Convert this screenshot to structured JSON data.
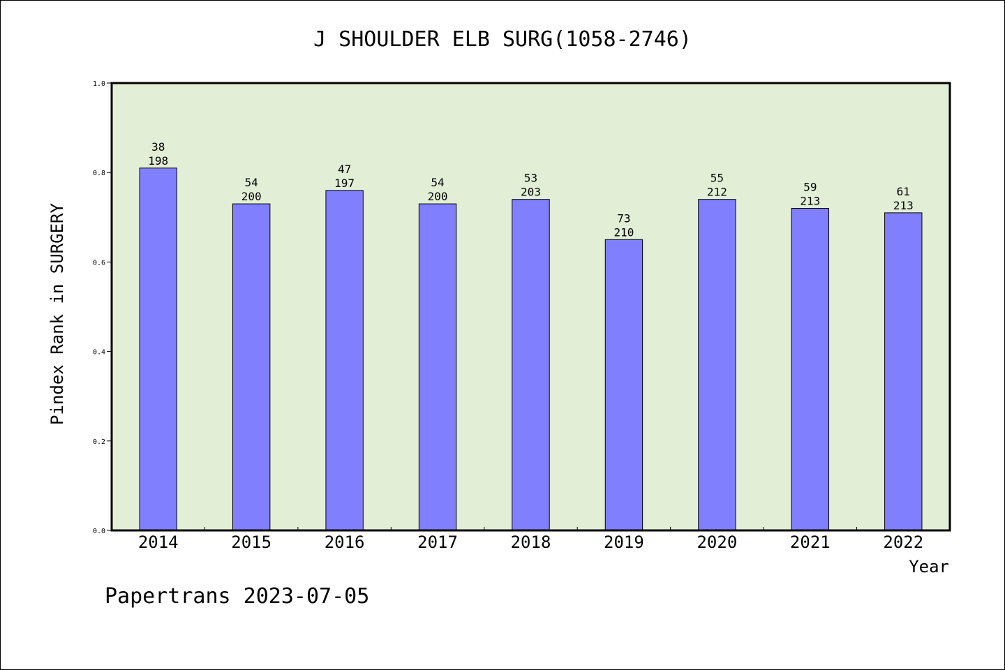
{
  "chart_data": {
    "type": "bar",
    "title": "J SHOULDER ELB SURG(1058-2746)",
    "xlabel": "Year",
    "ylabel": "Pindex Rank in SURGERY",
    "ylim": [
      0,
      1.0
    ],
    "yticks": [
      "0.0",
      "0.2",
      "0.4",
      "0.6",
      "0.8",
      "1.0"
    ],
    "categories": [
      "2014",
      "2015",
      "2016",
      "2017",
      "2018",
      "2019",
      "2020",
      "2021",
      "2022"
    ],
    "values": [
      0.81,
      0.73,
      0.76,
      0.73,
      0.74,
      0.65,
      0.74,
      0.72,
      0.71
    ],
    "rank_labels": [
      "38",
      "54",
      "47",
      "54",
      "53",
      "73",
      "55",
      "59",
      "61"
    ],
    "total_labels": [
      "198",
      "200",
      "197",
      "200",
      "203",
      "210",
      "212",
      "213",
      "213"
    ],
    "grid": false,
    "colors": {
      "bar": "#8080ff",
      "plot_bg": "#e2efd6"
    }
  },
  "footer": "Papertrans 2023-07-05"
}
